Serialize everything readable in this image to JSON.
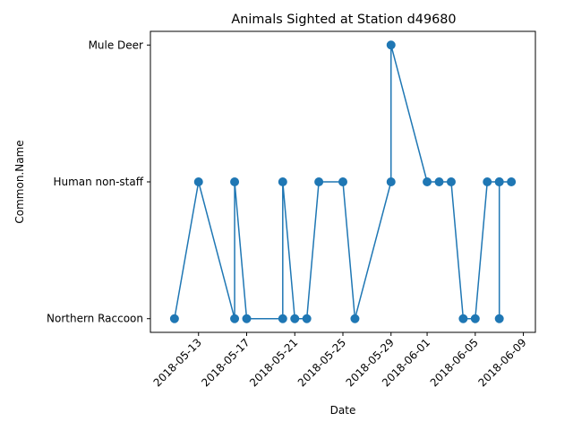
{
  "chart_data": {
    "type": "line",
    "title": "Animals Sighted at Station d49680",
    "xlabel": "Date",
    "ylabel": "Common.Name",
    "categories": [
      "Northern Raccoon",
      "Human non-staff",
      "Mule Deer"
    ],
    "x_ticks": [
      "2018-05-13",
      "2018-05-17",
      "2018-05-21",
      "2018-05-25",
      "2018-05-29",
      "2018-06-01",
      "2018-06-05",
      "2018-06-09"
    ],
    "xlim": [
      "2018-05-09",
      "2018-06-10"
    ],
    "grid": false,
    "marker": "circle",
    "color": "#1f77b4",
    "series": [
      {
        "points": [
          {
            "x": "2018-05-11",
            "y": "Northern Raccoon"
          },
          {
            "x": "2018-05-13",
            "y": "Human non-staff"
          },
          {
            "x": "2018-05-16",
            "y": "Northern Raccoon"
          },
          {
            "x": "2018-05-16",
            "y": "Human non-staff"
          },
          {
            "x": "2018-05-17",
            "y": "Northern Raccoon"
          },
          {
            "x": "2018-05-20",
            "y": "Northern Raccoon"
          },
          {
            "x": "2018-05-20",
            "y": "Human non-staff"
          },
          {
            "x": "2018-05-21",
            "y": "Northern Raccoon"
          },
          {
            "x": "2018-05-22",
            "y": "Northern Raccoon"
          },
          {
            "x": "2018-05-23",
            "y": "Human non-staff"
          },
          {
            "x": "2018-05-25",
            "y": "Human non-staff"
          },
          {
            "x": "2018-05-26",
            "y": "Northern Raccoon"
          },
          {
            "x": "2018-05-29",
            "y": "Human non-staff"
          },
          {
            "x": "2018-05-29",
            "y": "Mule Deer"
          },
          {
            "x": "2018-06-01",
            "y": "Human non-staff"
          },
          {
            "x": "2018-06-02",
            "y": "Human non-staff"
          },
          {
            "x": "2018-06-03",
            "y": "Human non-staff"
          },
          {
            "x": "2018-06-04",
            "y": "Northern Raccoon"
          },
          {
            "x": "2018-06-05",
            "y": "Northern Raccoon"
          },
          {
            "x": "2018-06-06",
            "y": "Human non-staff"
          },
          {
            "x": "2018-06-07",
            "y": "Human non-staff"
          },
          {
            "x": "2018-06-07",
            "y": "Northern Raccoon"
          },
          {
            "x": "2018-06-07",
            "y": "Human non-staff"
          },
          {
            "x": "2018-06-08",
            "y": "Human non-staff"
          }
        ]
      }
    ]
  }
}
